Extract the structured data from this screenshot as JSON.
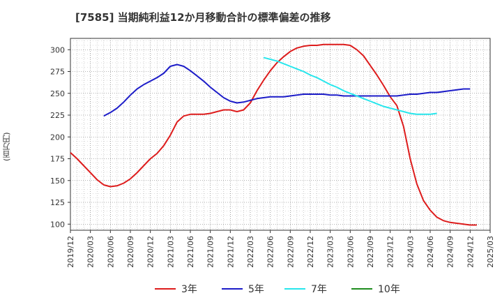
{
  "chart_data": {
    "type": "line",
    "title": "[7585]  当期純利益12か月移動合計の標準偏差の推移",
    "ylabel": "(百万円)",
    "xlabel": "",
    "ylim": [
      93,
      313
    ],
    "yticks": [
      100,
      125,
      150,
      175,
      200,
      225,
      250,
      275,
      300
    ],
    "xticks": [
      "2019/12",
      "2020/03",
      "2020/06",
      "2020/09",
      "2020/12",
      "2021/03",
      "2021/06",
      "2021/09",
      "2021/12",
      "2022/03",
      "2022/06",
      "2022/09",
      "2022/12",
      "2023/03",
      "2023/06",
      "2023/09",
      "2023/12",
      "2024/03",
      "2024/06",
      "2024/09",
      "2024/12",
      "2025/03"
    ],
    "grid": true,
    "legend_position": "bottom",
    "series": [
      {
        "name": "3年",
        "color": "#dd1c1c",
        "start": "2019/12",
        "values": [
          182,
          175,
          167,
          159,
          151,
          145,
          143,
          144,
          147,
          152,
          159,
          167,
          175,
          181,
          190,
          202,
          217,
          224,
          226,
          226,
          226,
          227,
          229,
          231,
          231,
          229,
          231,
          239,
          253,
          265,
          276,
          285,
          292,
          298,
          302,
          304,
          305,
          305,
          306,
          306,
          306,
          306,
          305,
          300,
          293,
          282,
          271,
          259,
          246,
          236,
          212,
          175,
          146,
          127,
          116,
          108,
          104,
          102,
          101,
          100,
          99,
          99
        ]
      },
      {
        "name": "5年",
        "color": "#1c1cc8",
        "start": "2020/05",
        "values": [
          224,
          228,
          233,
          240,
          248,
          255,
          260,
          264,
          268,
          273,
          281,
          283,
          281,
          276,
          270,
          264,
          257,
          251,
          245,
          241,
          239,
          240,
          242,
          244,
          245,
          246,
          246,
          246,
          247,
          248,
          249,
          249,
          249,
          249,
          248,
          248,
          247,
          247,
          247,
          247,
          247,
          247,
          247,
          247,
          247,
          248,
          249,
          249,
          250,
          251,
          251,
          252,
          253,
          254,
          255,
          255
        ]
      },
      {
        "name": "7年",
        "color": "#27e6ec",
        "start": "2022/05",
        "values": [
          291,
          289,
          287,
          284,
          281,
          278,
          275,
          271,
          268,
          264,
          260,
          257,
          253,
          250,
          247,
          244,
          241,
          238,
          235,
          233,
          231,
          229,
          227,
          226,
          226,
          226,
          227
        ]
      },
      {
        "name": "10年",
        "color": "#1e8c1e",
        "start": "2024/12",
        "values": []
      }
    ]
  }
}
